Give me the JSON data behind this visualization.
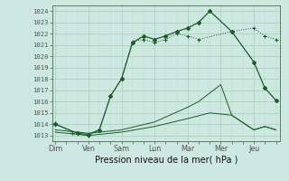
{
  "bg_color": "#cce8e0",
  "grid_color": "#aaccbb",
  "line_color": "#1a5c2a",
  "xlabel": "Pression niveau de la mer( hPa )",
  "ylim": [
    1012.5,
    1024.5
  ],
  "yticks": [
    1013,
    1014,
    1015,
    1016,
    1017,
    1018,
    1019,
    1020,
    1021,
    1022,
    1023,
    1024
  ],
  "x_labels": [
    "Dim",
    "Ven",
    "Sam",
    "Lun",
    "Mar",
    "Mer",
    "Jeu"
  ],
  "x_tick_pos": [
    0,
    1,
    2,
    3,
    4,
    5,
    6
  ],
  "xlim": [
    -0.1,
    6.8
  ],
  "series1_x": [
    0,
    0.67,
    1.0,
    1.33,
    1.67,
    2.0,
    2.33,
    2.67,
    3.0,
    3.33,
    3.67,
    4.0,
    4.33,
    4.67,
    5.33,
    6.0,
    6.33,
    6.67
  ],
  "series1_y": [
    1014.0,
    1013.2,
    1013.1,
    1013.5,
    1016.5,
    1018.0,
    1021.2,
    1021.8,
    1021.5,
    1021.8,
    1022.2,
    1022.5,
    1023.0,
    1024.0,
    1022.2,
    1019.5,
    1017.2,
    1016.1
  ],
  "series2_x": [
    0,
    0.5,
    1.0,
    1.33,
    1.67,
    2.0,
    2.33,
    2.67,
    3.0,
    3.33,
    3.67,
    4.0,
    4.33,
    5.33,
    6.0,
    6.33,
    6.67
  ],
  "series2_y": [
    1014.1,
    1013.2,
    1013.0,
    1013.5,
    1016.5,
    1018.0,
    1021.3,
    1021.5,
    1021.2,
    1021.5,
    1022.0,
    1021.8,
    1021.5,
    1022.2,
    1022.5,
    1021.8,
    1021.5
  ],
  "series3_x": [
    0,
    1.0,
    2.0,
    3.0,
    4.0,
    4.67,
    5.33,
    6.0,
    6.33,
    6.67
  ],
  "series3_y": [
    1013.3,
    1013.0,
    1013.3,
    1013.8,
    1014.5,
    1015.0,
    1014.8,
    1013.5,
    1013.8,
    1013.5
  ],
  "series4_x": [
    0,
    1.0,
    2.0,
    3.0,
    4.0,
    4.33,
    5.0,
    5.33,
    6.0,
    6.33,
    6.67
  ],
  "series4_y": [
    1013.5,
    1013.2,
    1013.5,
    1014.2,
    1015.5,
    1016.0,
    1017.5,
    1014.8,
    1013.5,
    1013.8,
    1013.5
  ]
}
